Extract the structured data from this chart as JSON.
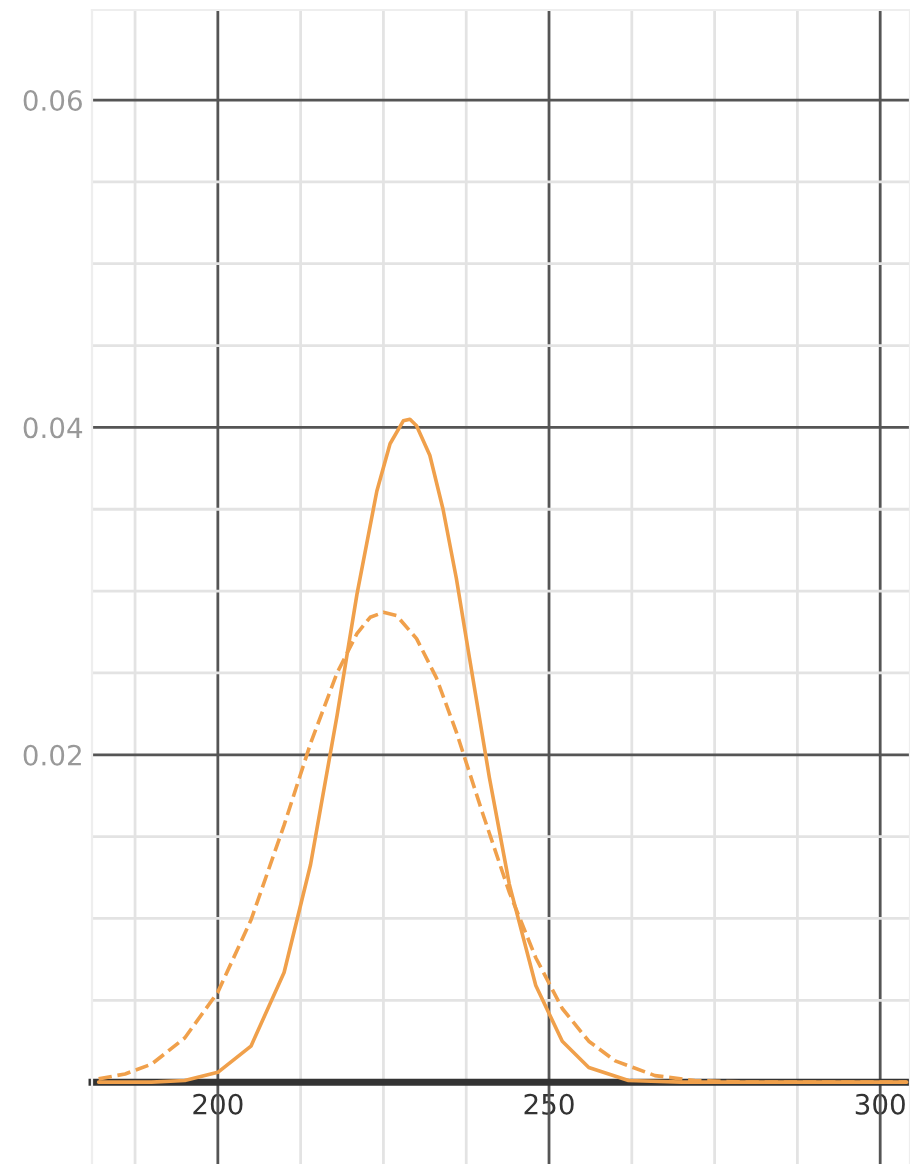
{
  "chart_data": {
    "type": "line",
    "xlim": [
      181,
      304.5
    ],
    "ylim": [
      -0.005,
      0.0655
    ],
    "xticks": [
      {
        "value": 187.5,
        "label": null
      },
      200,
      {
        "value": 212.5,
        "label": null
      },
      {
        "value": 225,
        "label": null
      },
      {
        "value": 237.5,
        "label": null
      },
      250,
      {
        "value": 262.5,
        "label": null
      },
      {
        "value": 275,
        "label": null
      },
      {
        "value": 287.5,
        "label": null
      },
      300
    ],
    "yticks": [
      {
        "value": 0.005,
        "label": null
      },
      {
        "value": 0.01,
        "label": null
      },
      {
        "value": 0.015,
        "label": null
      },
      0.02,
      {
        "value": 0.025,
        "label": null
      },
      {
        "value": 0.03,
        "label": null
      },
      {
        "value": 0.035,
        "label": null
      },
      0.04,
      {
        "value": 0.045,
        "label": null
      },
      {
        "value": 0.05,
        "label": null
      },
      {
        "value": 0.055,
        "label": null
      },
      0.06
    ],
    "grid": true,
    "legend": false,
    "marker": "none",
    "series": [
      {
        "color": "#f0a04b",
        "line_style": "solid",
        "x": [
          182,
          190,
          195,
          200,
          205,
          210,
          214,
          218,
          221,
          224,
          226,
          228,
          229,
          230,
          232,
          234,
          236,
          238,
          241,
          244,
          248,
          252,
          256,
          262,
          270,
          280,
          304
        ],
        "values": [
          0,
          0,
          0.0001,
          0.0006,
          0.0022,
          0.0067,
          0.0133,
          0.0224,
          0.0298,
          0.0361,
          0.039,
          0.0404,
          0.0405,
          0.0401,
          0.0383,
          0.035,
          0.0308,
          0.0259,
          0.0186,
          0.0121,
          0.0059,
          0.0025,
          0.0009,
          0.0001,
          0,
          0,
          0
        ]
      },
      {
        "color": "#f0a04b",
        "line_style": "dashed",
        "x": [
          182,
          186,
          190,
          195,
          200,
          205,
          210,
          214,
          218,
          221,
          223,
          225,
          227,
          230,
          233,
          236,
          240,
          244,
          248,
          252,
          256,
          260,
          266,
          272,
          280,
          290,
          304
        ],
        "values": [
          0.0002,
          0.0005,
          0.0011,
          0.0027,
          0.0055,
          0.0099,
          0.0157,
          0.0207,
          0.025,
          0.0274,
          0.0284,
          0.0287,
          0.0285,
          0.0271,
          0.0247,
          0.0214,
          0.0164,
          0.0116,
          0.0076,
          0.0045,
          0.0025,
          0.0013,
          0.0004,
          0.0001,
          0,
          0,
          0
        ]
      }
    ]
  }
}
